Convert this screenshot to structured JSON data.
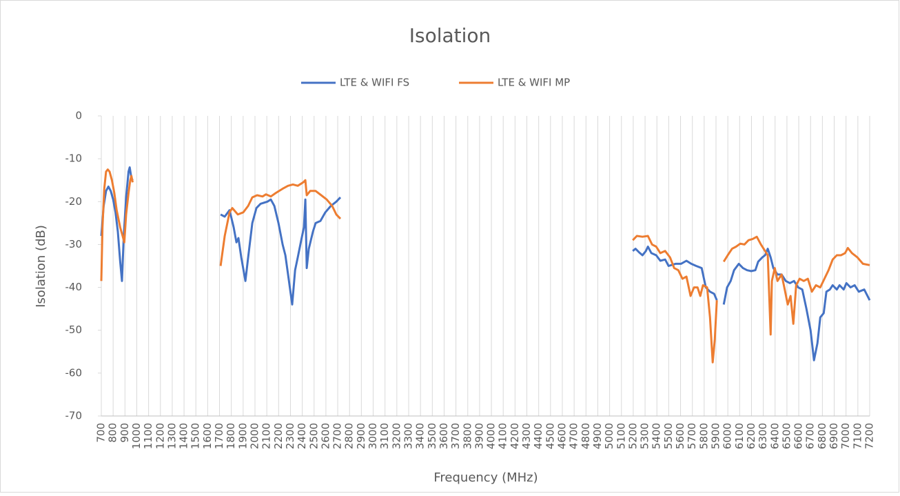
{
  "chart_data": {
    "type": "line",
    "title": "Isolation",
    "x_label": "Frequency (MHz)",
    "y_label": "Isolation (dB)",
    "xlim": [
      700,
      7200
    ],
    "xticks": [
      700,
      800,
      900,
      1000,
      1100,
      1200,
      1300,
      1400,
      1500,
      1600,
      1700,
      1800,
      1900,
      2000,
      2100,
      2200,
      2300,
      2400,
      2500,
      2600,
      2700,
      2800,
      2900,
      3000,
      3100,
      3200,
      3300,
      3400,
      3500,
      3600,
      3700,
      3800,
      3900,
      4000,
      4100,
      4200,
      4300,
      4400,
      4500,
      4600,
      4700,
      4800,
      4900,
      5000,
      5100,
      5200,
      5300,
      5400,
      5500,
      5600,
      5700,
      5800,
      5900,
      6000,
      6100,
      6200,
      6300,
      6400,
      6500,
      6600,
      6700,
      6800,
      6900,
      7000,
      7100,
      7200
    ],
    "ylim": [
      -70,
      0
    ],
    "yticks": [
      -70,
      -60,
      -50,
      -40,
      -30,
      -20,
      -10,
      0
    ],
    "grid": "x",
    "legend": "top",
    "series": [
      {
        "name": "LTE & WIFI FS",
        "color": "#4472c4",
        "x": [
          700,
          720,
          740,
          760,
          780,
          800,
          820,
          840,
          860,
          875,
          890,
          910,
          930,
          940,
          955,
          965,
          1300,
          1709,
          1744,
          1785,
          1820,
          1843,
          1860,
          1884,
          1919,
          1942,
          1977,
          2012,
          2047,
          2105,
          2134,
          2164,
          2199,
          2234,
          2257,
          2280,
          2315,
          2339,
          2362,
          2391,
          2414,
          2426,
          2438,
          2455,
          2490,
          2513,
          2554,
          2595,
          2642,
          2688,
          2723,
          4000,
          5196,
          5219,
          5248,
          5278,
          5307,
          5324,
          5353,
          5394,
          5429,
          5470,
          5499,
          5557,
          5604,
          5650,
          5691,
          5732,
          5779,
          5814,
          5849,
          5884,
          5907,
          5935,
          5965,
          5994,
          6024,
          6053,
          6093,
          6128,
          6163,
          6198,
          6233,
          6257,
          6292,
          6315,
          6338,
          6362,
          6385,
          6420,
          6455,
          6490,
          6525,
          6560,
          6595,
          6630,
          6665,
          6700,
          6729,
          6758,
          6782,
          6811,
          6834,
          6863,
          6887,
          6922,
          6945,
          6980,
          7003,
          7038,
          7073,
          7108,
          7154,
          7200
        ],
        "values": [
          -28,
          -21,
          -17.5,
          -16.5,
          -17.5,
          -19.5,
          -22.5,
          -27,
          -34,
          -38.5,
          -28,
          -19,
          -13,
          -12,
          -14.5,
          -15,
          null,
          -23,
          -23.5,
          -22,
          -26,
          -29.5,
          -28.5,
          -33,
          -38.5,
          -33,
          -25,
          -21.5,
          -20.5,
          -20,
          -19.5,
          -21,
          -25,
          -30,
          -32.5,
          -37,
          -44,
          -36,
          -33,
          -29,
          -26,
          -19.5,
          -35.5,
          -31,
          -27,
          -25,
          -24.5,
          -22.5,
          -21,
          -20,
          -19,
          null,
          -31.5,
          -31,
          -31.8,
          -32.5,
          -31.5,
          -30.5,
          -32,
          -32.5,
          -33.8,
          -33.5,
          -35,
          -34.5,
          -34.5,
          -33.8,
          -34.5,
          -35,
          -35.5,
          -40,
          -41,
          -41.5,
          -43,
          null,
          -44,
          -40,
          -38.5,
          -36,
          -34.5,
          -35.5,
          -36,
          -36.2,
          -36,
          -34,
          -33,
          -32.5,
          -31,
          -33,
          -35.5,
          -37,
          -37,
          -38.5,
          -39,
          -38.5,
          -40,
          -40.5,
          -45,
          -50,
          -57,
          -53,
          -47,
          -46,
          -41,
          -40.5,
          -39.5,
          -40.5,
          -39.5,
          -40.5,
          -39,
          -40,
          -39.5,
          -41,
          -40.5,
          -43
        ]
      },
      {
        "name": "LTE & WIFI MP",
        "color": "#ed7d31",
        "x": [
          700,
          710,
          725,
          740,
          755,
          770,
          790,
          810,
          830,
          860,
          880,
          895,
          910,
          930,
          945,
          955,
          965,
          1300,
          1709,
          1744,
          1785,
          1808,
          1855,
          1901,
          1942,
          1977,
          2018,
          2064,
          2093,
          2134,
          2175,
          2234,
          2280,
          2321,
          2362,
          2408,
          2426,
          2438,
          2467,
          2513,
          2560,
          2607,
          2653,
          2688,
          2723,
          4000,
          5196,
          5231,
          5278,
          5324,
          5359,
          5394,
          5429,
          5470,
          5511,
          5546,
          5581,
          5616,
          5650,
          5685,
          5714,
          5744,
          5767,
          5790,
          5825,
          5849,
          5872,
          5890,
          5907,
          5935,
          5965,
          5999,
          6036,
          6070,
          6105,
          6140,
          6175,
          6210,
          6245,
          6280,
          6315,
          6338,
          6362,
          6373,
          6397,
          6420,
          6455,
          6478,
          6507,
          6531,
          6554,
          6578,
          6607,
          6642,
          6677,
          6711,
          6746,
          6782,
          6817,
          6852,
          6887,
          6922,
          6957,
          6992,
          7015,
          7050,
          7096,
          7143,
          7200
        ],
        "values": [
          -38.5,
          -26,
          -17,
          -13,
          -12.5,
          -13,
          -15,
          -18,
          -22,
          -26,
          -28,
          -29.5,
          -23,
          -18,
          -15,
          -14,
          -15.5,
          null,
          -35,
          -28,
          -22.5,
          -21.5,
          -23,
          -22.5,
          -21,
          -19,
          -18.5,
          -18.8,
          -18.3,
          -18.8,
          -18,
          -17,
          -16.3,
          -16,
          -16.3,
          -15.5,
          -15,
          -18.5,
          -17.5,
          -17.5,
          -18.5,
          -19.5,
          -21,
          -23,
          -24,
          null,
          -29,
          -28,
          -28.2,
          -28,
          -30,
          -30.5,
          -32,
          -31.5,
          -33,
          -35.5,
          -36,
          -38,
          -37.5,
          -42,
          -40,
          -40,
          -42,
          -39.5,
          -40,
          -47,
          -57.5,
          -52,
          -43,
          null,
          -34,
          -32.5,
          -31,
          -30.5,
          -29.8,
          -30,
          -29,
          -28.7,
          -28.2,
          -30,
          -31.5,
          -32.5,
          -51,
          -38.5,
          -35.5,
          -38.5,
          -37,
          -40,
          -44,
          -42,
          -48.5,
          -39.5,
          -38,
          -38.5,
          -38,
          -41,
          -39.5,
          -40,
          -38,
          -36,
          -33.5,
          -32.5,
          -32.5,
          -32,
          -30.8,
          -32,
          -33,
          -34.5,
          -34.8
        ]
      }
    ]
  }
}
